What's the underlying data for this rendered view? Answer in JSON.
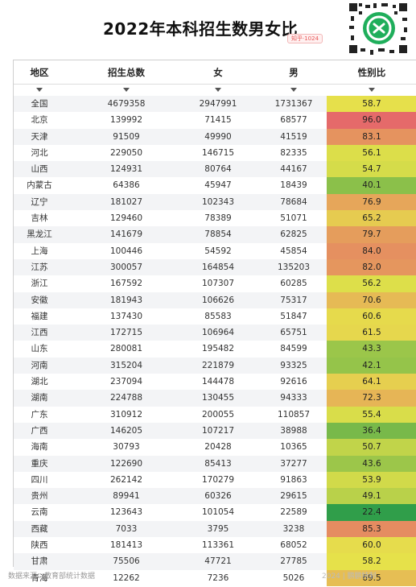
{
  "title": "2022年本科招生数男女比",
  "brand_tag": "知乎·1024",
  "headers": [
    "地区",
    "招生总数",
    "女",
    "男",
    "性别比"
  ],
  "colors": {
    "ratio_low": "#2e9d4a",
    "ratio_mid": "#e6e24a",
    "ratio_high": "#e56a6a"
  },
  "rows": [
    {
      "region": "全国",
      "total": "4679358",
      "female": "2947991",
      "male": "1731367",
      "ratio": "58.7"
    },
    {
      "region": "北京",
      "total": "139992",
      "female": "71415",
      "male": "68577",
      "ratio": "96.0"
    },
    {
      "region": "天津",
      "total": "91509",
      "female": "49990",
      "male": "41519",
      "ratio": "83.1"
    },
    {
      "region": "河北",
      "total": "229050",
      "female": "146715",
      "male": "82335",
      "ratio": "56.1"
    },
    {
      "region": "山西",
      "total": "124931",
      "female": "80764",
      "male": "44167",
      "ratio": "54.7"
    },
    {
      "region": "内蒙古",
      "total": "64386",
      "female": "45947",
      "male": "18439",
      "ratio": "40.1"
    },
    {
      "region": "辽宁",
      "total": "181027",
      "female": "102343",
      "male": "78684",
      "ratio": "76.9"
    },
    {
      "region": "吉林",
      "total": "129460",
      "female": "78389",
      "male": "51071",
      "ratio": "65.2"
    },
    {
      "region": "黑龙江",
      "total": "141679",
      "female": "78854",
      "male": "62825",
      "ratio": "79.7"
    },
    {
      "region": "上海",
      "total": "100446",
      "female": "54592",
      "male": "45854",
      "ratio": "84.0"
    },
    {
      "region": "江苏",
      "total": "300057",
      "female": "164854",
      "male": "135203",
      "ratio": "82.0"
    },
    {
      "region": "浙江",
      "total": "167592",
      "female": "107307",
      "male": "60285",
      "ratio": "56.2"
    },
    {
      "region": "安徽",
      "total": "181943",
      "female": "106626",
      "male": "75317",
      "ratio": "70.6"
    },
    {
      "region": "福建",
      "total": "137430",
      "female": "85583",
      "male": "51847",
      "ratio": "60.6"
    },
    {
      "region": "江西",
      "total": "172715",
      "female": "106964",
      "male": "65751",
      "ratio": "61.5"
    },
    {
      "region": "山东",
      "total": "280081",
      "female": "195482",
      "male": "84599",
      "ratio": "43.3"
    },
    {
      "region": "河南",
      "total": "315204",
      "female": "221879",
      "male": "93325",
      "ratio": "42.1"
    },
    {
      "region": "湖北",
      "total": "237094",
      "female": "144478",
      "male": "92616",
      "ratio": "64.1"
    },
    {
      "region": "湖南",
      "total": "224788",
      "female": "130455",
      "male": "94333",
      "ratio": "72.3"
    },
    {
      "region": "广东",
      "total": "310912",
      "female": "200055",
      "male": "110857",
      "ratio": "55.4"
    },
    {
      "region": "广西",
      "total": "146205",
      "female": "107217",
      "male": "38988",
      "ratio": "36.4"
    },
    {
      "region": "海南",
      "total": "30793",
      "female": "20428",
      "male": "10365",
      "ratio": "50.7"
    },
    {
      "region": "重庆",
      "total": "122690",
      "female": "85413",
      "male": "37277",
      "ratio": "43.6"
    },
    {
      "region": "四川",
      "total": "262142",
      "female": "170279",
      "male": "91863",
      "ratio": "53.9"
    },
    {
      "region": "贵州",
      "total": "89941",
      "female": "60326",
      "male": "29615",
      "ratio": "49.1"
    },
    {
      "region": "云南",
      "total": "123643",
      "female": "101054",
      "male": "22589",
      "ratio": "22.4"
    },
    {
      "region": "西藏",
      "total": "7033",
      "female": "3795",
      "male": "3238",
      "ratio": "85.3"
    },
    {
      "region": "陕西",
      "total": "181413",
      "female": "113361",
      "male": "68052",
      "ratio": "60.0"
    },
    {
      "region": "甘肃",
      "total": "75506",
      "female": "47721",
      "male": "27785",
      "ratio": "58.2"
    },
    {
      "region": "青海",
      "total": "12262",
      "female": "7236",
      "male": "5026",
      "ratio": "69.5"
    }
  ],
  "footer": {
    "source": "数据来源：教育部统计数据",
    "right": "2024 | 鹏鹏特制"
  }
}
